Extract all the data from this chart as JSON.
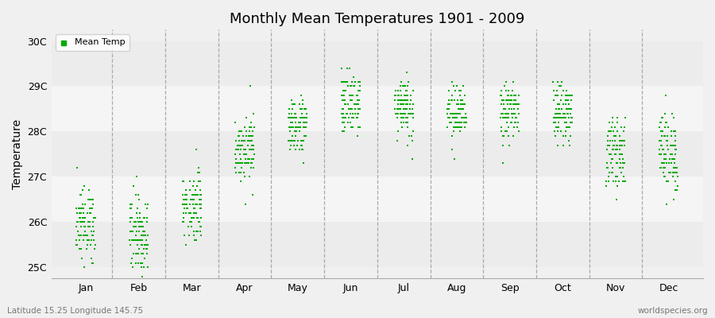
{
  "title": "Monthly Mean Temperatures 1901 - 2009",
  "ylabel": "Temperature",
  "bottom_left": "Latitude 15.25 Longitude 145.75",
  "bottom_right": "worldspecies.org",
  "bg_color": "#f0f0f0",
  "plot_bg_color": "#f0f0f0",
  "marker_color": "#00aa00",
  "ytick_labels": [
    "25C",
    "26C",
    "27C",
    "28C",
    "29C",
    "30C"
  ],
  "ytick_values": [
    25,
    26,
    27,
    28,
    29,
    30
  ],
  "ylim": [
    24.75,
    30.25
  ],
  "xlim": [
    0.35,
    12.65
  ],
  "month_positions": [
    1,
    2,
    3,
    4,
    5,
    6,
    7,
    8,
    9,
    10,
    11,
    12
  ],
  "month_labels": [
    "Jan",
    "Feb",
    "Mar",
    "Apr",
    "May",
    "Jun",
    "Jul",
    "Aug",
    "Sep",
    "Oct",
    "Nov",
    "Dec"
  ],
  "mean_temps": [
    25.95,
    25.75,
    26.35,
    27.65,
    28.12,
    28.62,
    28.58,
    28.38,
    28.42,
    28.42,
    27.55,
    27.55
  ],
  "spread": [
    0.38,
    0.42,
    0.38,
    0.35,
    0.32,
    0.32,
    0.35,
    0.3,
    0.3,
    0.3,
    0.35,
    0.45
  ],
  "n_points": 109,
  "x_jitter": 0.18,
  "marker_size": 3,
  "vline_color": "#aaaaaa",
  "band_colors": [
    "#ececec",
    "#f5f5f5"
  ],
  "band_boundaries": [
    25,
    26,
    27,
    28,
    29,
    30
  ]
}
